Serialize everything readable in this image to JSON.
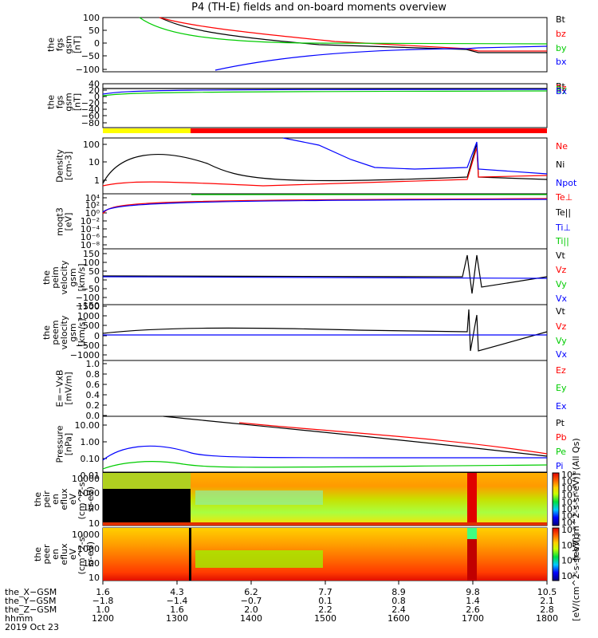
{
  "title": "P4 (TH-E) fields and on-board moments overview",
  "chart_data": [
    {
      "type": "line",
      "ylabel": [
        "the",
        "fgs",
        "gsm",
        "[nT]"
      ],
      "yticks": [
        "100",
        "50",
        "0",
        "−50",
        "−100"
      ],
      "ylim": [
        -100,
        100
      ],
      "series": [
        {
          "name": "Bt",
          "color": "#000000"
        },
        {
          "name": "bz",
          "color": "#ff0000"
        },
        {
          "name": "by",
          "color": "#00cc00"
        },
        {
          "name": "bx",
          "color": "#0000ff"
        }
      ]
    },
    {
      "type": "line",
      "ylabel": [
        "the",
        "fgs",
        "gsm",
        "[nT]"
      ],
      "yticks": [
        "40",
        "20",
        "0",
        "−20",
        "−40",
        "−60",
        "−80"
      ],
      "ylim": [
        -90,
        40
      ],
      "series": [
        {
          "name": "Bt",
          "color": "#000000"
        },
        {
          "name": "Bz",
          "color": "#ff0000"
        },
        {
          "name": "By",
          "color": "#00cc00"
        },
        {
          "name": "Bx",
          "color": "#0000ff"
        }
      ]
    },
    {
      "type": "line",
      "ylabel": [
        "Density",
        "[cm-3]"
      ],
      "yticks": [
        "100",
        "10",
        "1"
      ],
      "yscale": "log",
      "ylim": [
        0.5,
        150
      ],
      "series": [
        {
          "name": "Ne",
          "color": "#ff0000"
        },
        {
          "name": "Ni",
          "color": "#000000"
        },
        {
          "name": "Npot",
          "color": "#0000ff"
        }
      ]
    },
    {
      "type": "line",
      "ylabel": [
        "moqt3",
        "[eV]"
      ],
      "yticks": [
        "10⁴",
        "10²",
        "10⁰",
        "10⁻²",
        "10⁻⁴",
        "10⁻⁶",
        "10⁻⁸"
      ],
      "yscale": "log",
      "series": [
        {
          "name": "Te⊥",
          "color": "#ff0000"
        },
        {
          "name": "Te||",
          "color": "#000000"
        },
        {
          "name": "Ti⊥",
          "color": "#0000ff"
        },
        {
          "name": "Ti||",
          "color": "#00cc00"
        }
      ]
    },
    {
      "type": "line",
      "ylabel": [
        "the",
        "peim",
        "velocity",
        "gsm",
        "[km/s]"
      ],
      "yticks": [
        "150",
        "100",
        "50",
        "0",
        "−50",
        "−100",
        "−150"
      ],
      "ylim": [
        -150,
        150
      ],
      "series": [
        {
          "name": "Vt",
          "color": "#000000"
        },
        {
          "name": "Vz",
          "color": "#ff0000"
        },
        {
          "name": "Vy",
          "color": "#00cc00"
        },
        {
          "name": "Vx",
          "color": "#0000ff"
        }
      ]
    },
    {
      "type": "line",
      "ylabel": [
        "the",
        "peem",
        "velocity",
        "gsm",
        "[km/s]"
      ],
      "yticks": [
        "1500",
        "1000",
        "500",
        "0",
        "−500",
        "−1000"
      ],
      "ylim": [
        -1300,
        1500
      ],
      "series": [
        {
          "name": "Vt",
          "color": "#000000"
        },
        {
          "name": "Vz",
          "color": "#ff0000"
        },
        {
          "name": "Vy",
          "color": "#00cc00"
        },
        {
          "name": "Vx",
          "color": "#0000ff"
        }
      ]
    },
    {
      "type": "line",
      "ylabel": [
        "E=−VxB",
        "[mV/m]"
      ],
      "yticks": [
        "1.0",
        "0.8",
        "0.6",
        "0.4",
        "0.2",
        "0.0"
      ],
      "ylim": [
        0,
        1
      ],
      "series": [
        {
          "name": "Ez",
          "color": "#ff0000"
        },
        {
          "name": "Ey",
          "color": "#00cc00"
        },
        {
          "name": "Ex",
          "color": "#0000ff"
        }
      ]
    },
    {
      "type": "line",
      "ylabel": [
        "Pressure",
        "[nPa]"
      ],
      "yticks": [
        "10.00",
        "1.00",
        "0.10",
        "0.01"
      ],
      "yscale": "log",
      "ylim": [
        0.008,
        25
      ],
      "series": [
        {
          "name": "Pt",
          "color": "#000000"
        },
        {
          "name": "Pb",
          "color": "#ff0000"
        },
        {
          "name": "Pe",
          "color": "#00cc00"
        },
        {
          "name": "Pi",
          "color": "#0000ff"
        }
      ]
    },
    {
      "type": "heatmap",
      "ylabel": [
        "the",
        "peir",
        "en",
        "eflux",
        "eV",
        "(cm^2-s-",
        "sr-eV)"
      ],
      "yticks": [
        "10000",
        "1000",
        "100",
        "10"
      ],
      "yscale": "log"
    },
    {
      "type": "heatmap",
      "ylabel": [
        "the",
        "peer",
        "en",
        "eflux",
        "eV",
        "(cm^2-s-",
        "sr-eV)"
      ],
      "yticks": [
        "10000",
        "1000",
        "100",
        "10"
      ],
      "yscale": "log"
    }
  ],
  "colorbar_top": {
    "ticks": [
      "10⁸",
      "10⁷",
      "10⁶",
      "10⁵",
      "10⁴",
      "10³",
      "10²",
      "10¹"
    ],
    "label": "[eV/(cm^2-s-sr-eV)] (All Qs)"
  },
  "colorbar_bottom": {
    "ticks": [
      "10⁸",
      "10⁶",
      "10⁴",
      "10²"
    ],
    "label": "[eV/(cm^2-s-sr-eV)]"
  },
  "time_axis": {
    "rows": [
      {
        "label": "the_X−GSM",
        "values": [
          "1.6",
          "4.3",
          "6.2",
          "7.7",
          "8.9",
          "9.8",
          "10.5"
        ]
      },
      {
        "label": "the_Y−GSM",
        "values": [
          "−1.8",
          "−1.4",
          "−0.7",
          "0.1",
          "0.8",
          "1.4",
          "2.1"
        ]
      },
      {
        "label": "the_Z−GSM",
        "values": [
          "1.0",
          "1.6",
          "2.0",
          "2.2",
          "2.4",
          "2.6",
          "2.8"
        ]
      },
      {
        "label": "hhmm",
        "values": [
          "1200",
          "1300",
          "1400",
          "1500",
          "1600",
          "1700",
          "1800"
        ]
      }
    ],
    "date": "2019 Oct 23"
  }
}
